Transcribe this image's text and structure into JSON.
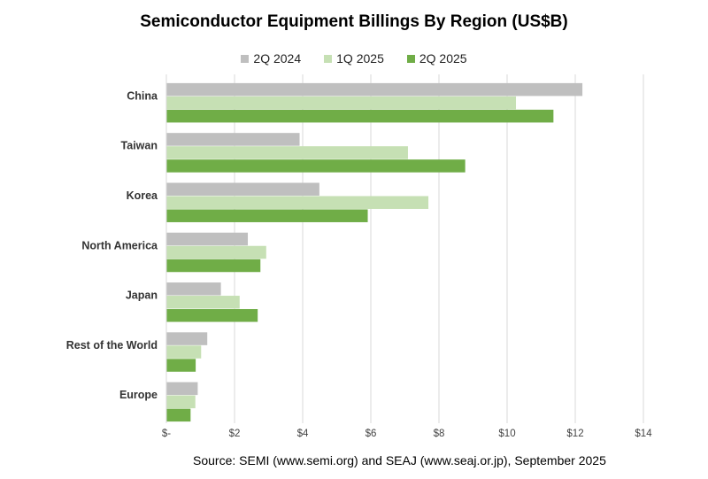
{
  "chart_data": {
    "type": "bar",
    "orientation": "horizontal",
    "title": "Semiconductor Equipment Billings By Region (US$B)",
    "categories": [
      "China",
      "Taiwan",
      "Korea",
      "North America",
      "Japan",
      "Rest of the World",
      "Europe"
    ],
    "series": [
      {
        "name": "2Q 2024",
        "color": "#bfbfbf",
        "values": [
          12.21,
          3.91,
          4.49,
          2.39,
          1.6,
          1.2,
          0.92
        ]
      },
      {
        "name": "1Q 2025",
        "color": "#c6e0b4",
        "values": [
          10.26,
          7.09,
          7.69,
          2.93,
          2.15,
          1.02,
          0.85
        ]
      },
      {
        "name": "2Q 2025",
        "color": "#70ad47",
        "values": [
          11.36,
          8.77,
          5.91,
          2.76,
          2.68,
          0.86,
          0.71
        ]
      }
    ],
    "xlim": [
      0,
      14
    ],
    "ticks": [
      0,
      2,
      4,
      6,
      8,
      10,
      12,
      14
    ],
    "tick_labels": [
      "$-",
      "$2",
      "$4",
      "$6",
      "$8",
      "$10",
      "$12",
      "$14"
    ],
    "grid": true,
    "legend_position": "top"
  },
  "source": "Source: SEMI (www.semi.org)  and SEAJ (www.seaj.or.jp),  September 2025"
}
